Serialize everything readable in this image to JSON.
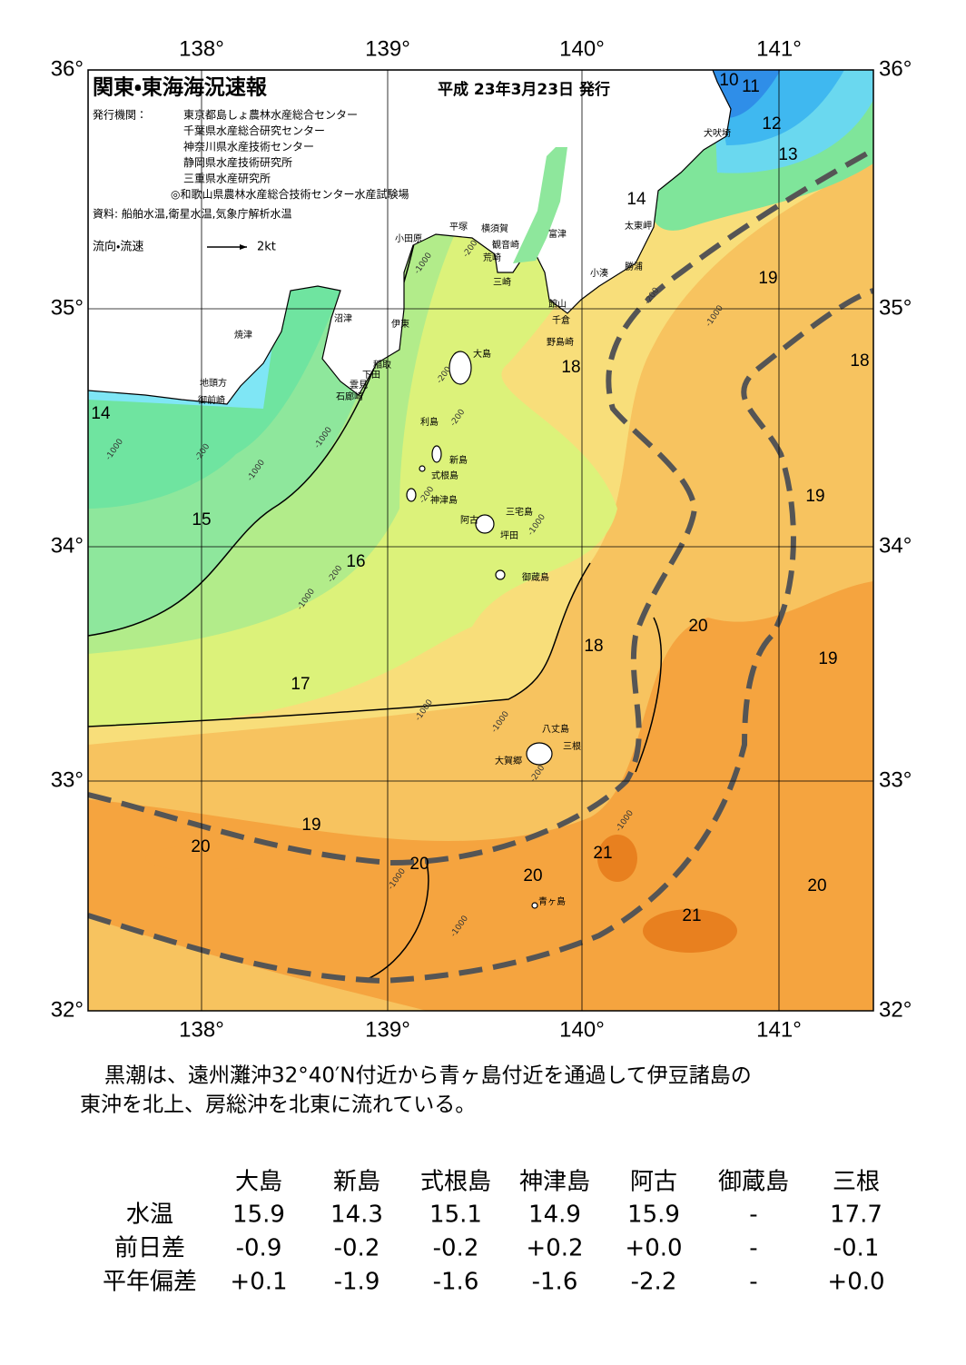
{
  "map": {
    "title": "関東・東海海況速報",
    "issued": "平成 23年3月23日 発行",
    "agencies_label": "発行機関：",
    "agencies": [
      "東京都島しょ農林水産総合センター",
      "千葉県水産総合研究センター",
      "神奈川県水産技術センター",
      "静岡県水産技術研究所",
      "三重県水産研究所",
      "◎和歌山県農林水産総合技術センター水産試験場"
    ],
    "source": "資料: 船舶水温,衛星水温,気象庁解析水温",
    "legend_label": "流向・流速",
    "legend_speed": "2kt",
    "lon_labels": [
      "138°",
      "139°",
      "140°",
      "141°"
    ],
    "lat_labels": [
      "36°",
      "35°",
      "34°",
      "33°",
      "32°"
    ],
    "places": [
      "小田原",
      "平塚",
      "横須賀",
      "観音崎",
      "富津",
      "荒崎",
      "三崎",
      "太東岬",
      "勝浦",
      "小湊",
      "館山",
      "千倉",
      "野島崎",
      "犬吠埼",
      "沼津",
      "伊東",
      "焼津",
      "稲取",
      "下田",
      "雲見",
      "石廊崎",
      "地頭方",
      "御前崎",
      "大島",
      "利島",
      "新島",
      "式根島",
      "神津島",
      "三宅島",
      "阿古",
      "坪田",
      "御蔵島",
      "八丈島",
      "三根",
      "大賀郷",
      "青ヶ島"
    ],
    "isotherm_labels": [
      10,
      11,
      12,
      13,
      14,
      19,
      18,
      18,
      14,
      15,
      19,
      16,
      20,
      19,
      18,
      17,
      19,
      20,
      21,
      20,
      20,
      20,
      21
    ],
    "depth_labels": [
      -1000,
      -200,
      -200,
      -1000,
      -200,
      -200,
      -1000,
      -200,
      -1000,
      -1000,
      -200,
      -1000,
      -200,
      -1000,
      -1000,
      -1000,
      -200,
      -1000,
      -1000,
      -1000
    ]
  },
  "summary": [
    "黒潮は、遠州灘沖32°40′N付近から青ヶ島付近を通過して伊豆諸島の",
    "東沖を北上、房総沖を北東に流れている。"
  ],
  "table": {
    "columns": [
      "大島",
      "新島",
      "式根島",
      "神津島",
      "阿古",
      "御蔵島",
      "三根"
    ],
    "rows": [
      {
        "label": "水温",
        "values": [
          "15.9",
          "14.3",
          "15.1",
          "14.9",
          "15.9",
          "-",
          "17.7"
        ]
      },
      {
        "label": "前日差",
        "values": [
          "-0.9",
          "-0.2",
          "-0.2",
          "+0.2",
          "+0.0",
          "-",
          "-0.1"
        ]
      },
      {
        "label": "平年偏差",
        "values": [
          "+0.1",
          "-1.9",
          "-1.6",
          "-1.6",
          "-2.2",
          "-",
          "+0.0"
        ]
      }
    ]
  }
}
